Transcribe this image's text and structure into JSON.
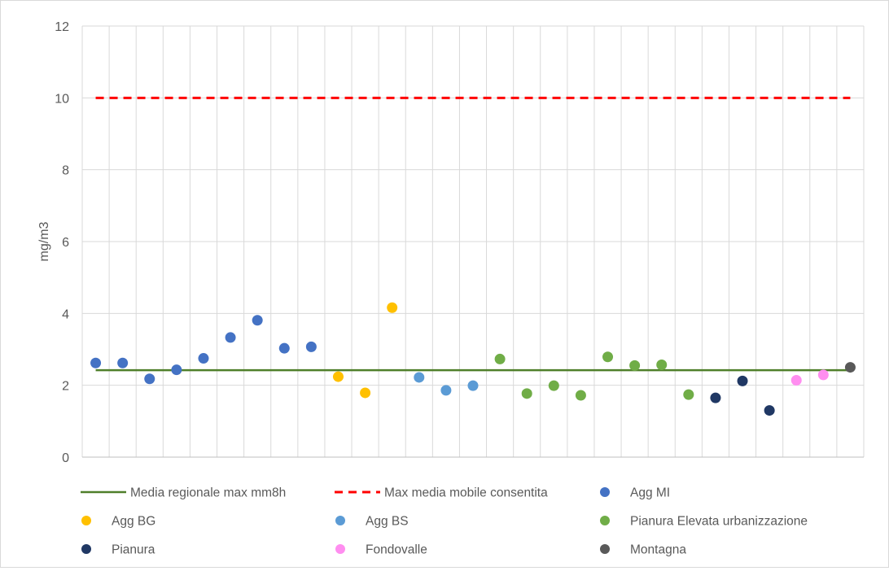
{
  "chart_data": {
    "type": "scatter",
    "title": "",
    "xlabel": "",
    "ylabel": "mg/m3",
    "ylim": [
      0,
      12
    ],
    "yticks": [
      0,
      2,
      4,
      6,
      8,
      10,
      12
    ],
    "ytick_labels": [
      "0",
      "2",
      "4",
      "6",
      "8",
      "10",
      "12"
    ],
    "x_count": 29,
    "grid": true,
    "legend_position": "bottom",
    "series": [
      {
        "name": "Media regionale max mm8h",
        "kind": "line",
        "style": "solid",
        "color": "#4f7f2a",
        "x": [
          1,
          29
        ],
        "y": [
          2.42,
          2.42
        ]
      },
      {
        "name": "Max media mobile consentita",
        "kind": "line",
        "style": "dashed",
        "color": "#ff0000",
        "x": [
          1,
          29
        ],
        "y": [
          10,
          10
        ]
      },
      {
        "name": "Agg MI",
        "kind": "marker",
        "color": "#4472c4",
        "x": [
          1,
          2,
          3,
          4,
          5,
          6,
          7,
          8,
          9
        ],
        "y": [
          2.62,
          2.62,
          2.18,
          2.43,
          2.75,
          3.33,
          3.81,
          3.03,
          3.07
        ]
      },
      {
        "name": "Agg BG",
        "kind": "marker",
        "color": "#ffc000",
        "x": [
          10,
          11,
          12
        ],
        "y": [
          2.24,
          1.79,
          4.16
        ]
      },
      {
        "name": "Agg BS",
        "kind": "marker",
        "color": "#5b9bd5",
        "x": [
          13,
          14,
          15
        ],
        "y": [
          2.22,
          1.86,
          1.99
        ]
      },
      {
        "name": "Pianura Elevata urbanizzazione",
        "kind": "marker",
        "color": "#70ad47",
        "x": [
          16,
          17,
          18,
          19,
          20,
          21,
          22,
          23
        ],
        "y": [
          2.73,
          1.77,
          1.99,
          1.72,
          2.79,
          2.55,
          2.57,
          1.74
        ]
      },
      {
        "name": "Pianura",
        "kind": "marker",
        "color": "#203864",
        "x": [
          24,
          25,
          26
        ],
        "y": [
          1.65,
          2.12,
          1.3
        ]
      },
      {
        "name": "Fondovalle",
        "kind": "marker",
        "color": "#ff8ef0",
        "x": [
          27,
          28
        ],
        "y": [
          2.14,
          2.29
        ]
      },
      {
        "name": "Montagna",
        "kind": "marker",
        "color": "#595959",
        "x": [
          29
        ],
        "y": [
          2.5
        ]
      }
    ]
  }
}
